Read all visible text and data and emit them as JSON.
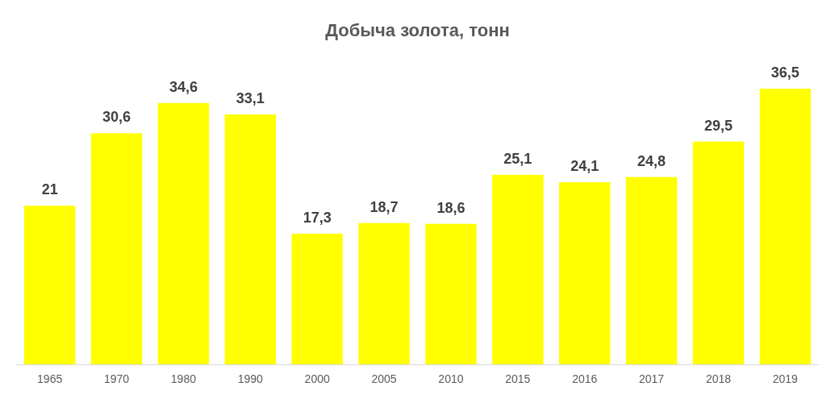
{
  "chart_data": {
    "type": "bar",
    "title": "Добыча золота, тонн",
    "categories": [
      "1965",
      "1970",
      "1980",
      "1990",
      "2000",
      "2005",
      "2010",
      "2015",
      "2016",
      "2017",
      "2018",
      "2019"
    ],
    "values": [
      21,
      30.6,
      34.6,
      33.1,
      17.3,
      18.7,
      18.6,
      25.1,
      24.1,
      24.8,
      29.5,
      36.5
    ],
    "value_labels": [
      "21",
      "30,6",
      "34,6",
      "33,1",
      "17,3",
      "18,7",
      "18,6",
      "25,1",
      "24,1",
      "24,8",
      "29,5",
      "36,5"
    ],
    "color": "#ffff00"
  }
}
